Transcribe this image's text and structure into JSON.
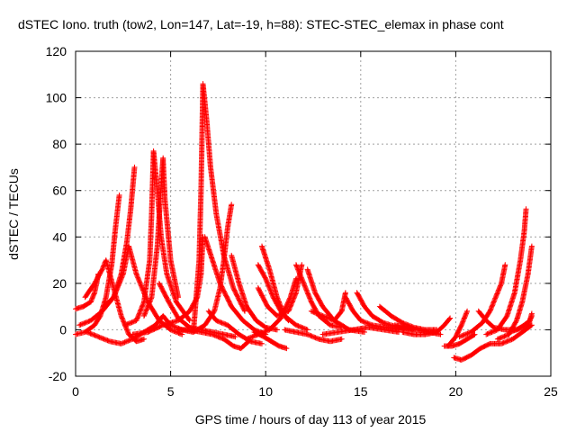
{
  "chart_data": {
    "type": "scatter",
    "title": "dSTEC Iono. truth (tow2, Lon=147, Lat=-19, h=88): STEC-STEC_elemax in phase cont",
    "xlabel": "GPS time / hours of day 113 of year 2015",
    "ylabel": "dSTEC  / TECUs",
    "xlim": [
      0,
      25
    ],
    "ylim": [
      -20,
      120
    ],
    "xticks": [
      "0",
      "5",
      "10",
      "15",
      "20",
      "25"
    ],
    "yticks": [
      "-20",
      "0",
      "20",
      "40",
      "60",
      "80",
      "100",
      "120"
    ],
    "grid": true,
    "marker": "+",
    "color": "#ff0000",
    "series": [
      {
        "points": [
          [
            0.0,
            -2
          ],
          [
            0.5,
            -1
          ],
          [
            1.0,
            2
          ],
          [
            1.3,
            6
          ],
          [
            1.6,
            14
          ],
          [
            1.9,
            28
          ],
          [
            2.1,
            44
          ],
          [
            2.3,
            58
          ]
        ]
      },
      {
        "points": [
          [
            0.0,
            9
          ],
          [
            0.4,
            10
          ],
          [
            0.8,
            12
          ],
          [
            1.0,
            16
          ],
          [
            1.2,
            24
          ]
        ]
      },
      {
        "points": [
          [
            0.5,
            14
          ],
          [
            1.0,
            20
          ],
          [
            1.4,
            26
          ],
          [
            1.6,
            30
          ],
          [
            2.0,
            18
          ],
          [
            2.4,
            6
          ],
          [
            2.8,
            -2
          ],
          [
            3.2,
            -5
          ],
          [
            3.6,
            -4
          ]
        ]
      },
      {
        "points": [
          [
            0.2,
            2
          ],
          [
            0.8,
            4
          ],
          [
            1.4,
            8
          ],
          [
            2.0,
            14
          ],
          [
            2.4,
            24
          ],
          [
            2.7,
            38
          ],
          [
            2.9,
            52
          ],
          [
            3.1,
            70
          ]
        ]
      },
      {
        "points": [
          [
            0.6,
            -1
          ],
          [
            1.2,
            -3
          ],
          [
            1.8,
            -5
          ],
          [
            2.4,
            -6
          ],
          [
            3.0,
            -4
          ],
          [
            3.6,
            -1
          ],
          [
            4.2,
            2
          ],
          [
            4.6,
            6
          ],
          [
            5.0,
            2
          ]
        ]
      },
      {
        "points": [
          [
            1.5,
            10
          ],
          [
            2.0,
            14
          ],
          [
            2.5,
            24
          ],
          [
            2.8,
            36
          ],
          [
            3.2,
            24
          ],
          [
            3.8,
            12
          ],
          [
            4.4,
            4
          ],
          [
            5.0,
            0
          ],
          [
            5.6,
            -2
          ]
        ]
      },
      {
        "points": [
          [
            2.6,
            2
          ],
          [
            3.2,
            4
          ],
          [
            3.6,
            12
          ],
          [
            3.9,
            30
          ],
          [
            4.0,
            50
          ],
          [
            4.1,
            77
          ],
          [
            4.3,
            60
          ],
          [
            4.5,
            40
          ],
          [
            4.8,
            24
          ],
          [
            5.3,
            12
          ],
          [
            6.0,
            4
          ]
        ]
      },
      {
        "points": [
          [
            3.6,
            6
          ],
          [
            4.0,
            14
          ],
          [
            4.3,
            36
          ],
          [
            4.5,
            62
          ],
          [
            4.6,
            74
          ],
          [
            4.7,
            56
          ],
          [
            5.0,
            30
          ],
          [
            5.4,
            14
          ]
        ]
      },
      {
        "points": [
          [
            3.0,
            -2
          ],
          [
            3.8,
            -1
          ],
          [
            4.6,
            2
          ],
          [
            5.4,
            4
          ],
          [
            6.0,
            8
          ],
          [
            6.4,
            14
          ],
          [
            6.6,
            24
          ],
          [
            6.7,
            40
          ]
        ]
      },
      {
        "points": [
          [
            4.4,
            20
          ],
          [
            4.9,
            12
          ],
          [
            5.4,
            5
          ],
          [
            6.0,
            1
          ],
          [
            6.6,
            0
          ],
          [
            7.2,
            -1
          ],
          [
            7.8,
            -2
          ],
          [
            8.4,
            -3
          ]
        ]
      },
      {
        "points": [
          [
            5.0,
            2
          ],
          [
            5.6,
            0
          ],
          [
            6.2,
            -1
          ],
          [
            6.5,
            30
          ],
          [
            6.6,
            60
          ],
          [
            6.7,
            106
          ],
          [
            6.9,
            90
          ],
          [
            7.1,
            70
          ],
          [
            7.4,
            50
          ],
          [
            7.8,
            32
          ],
          [
            8.3,
            18
          ],
          [
            8.9,
            8
          ]
        ]
      },
      {
        "points": [
          [
            5.4,
            0
          ],
          [
            6.0,
            0
          ],
          [
            6.6,
            -1
          ],
          [
            7.2,
            -2
          ],
          [
            7.8,
            -4
          ],
          [
            8.3,
            -7
          ],
          [
            8.7,
            -8
          ],
          [
            9.1,
            -5
          ]
        ]
      },
      {
        "points": [
          [
            6.2,
            -1
          ],
          [
            6.8,
            2
          ],
          [
            7.3,
            8
          ],
          [
            7.6,
            18
          ],
          [
            7.8,
            30
          ],
          [
            8.0,
            44
          ],
          [
            8.2,
            54
          ]
        ]
      },
      {
        "points": [
          [
            6.8,
            40
          ],
          [
            7.2,
            30
          ],
          [
            7.6,
            20
          ],
          [
            8.2,
            10
          ],
          [
            8.8,
            4
          ],
          [
            9.4,
            0
          ],
          [
            10.0,
            -2
          ]
        ]
      },
      {
        "points": [
          [
            7.0,
            8
          ],
          [
            7.4,
            4
          ],
          [
            8.0,
            2
          ],
          [
            8.6,
            -2
          ],
          [
            9.2,
            -5
          ],
          [
            9.8,
            -6
          ]
        ]
      },
      {
        "points": [
          [
            8.2,
            32
          ],
          [
            8.6,
            20
          ],
          [
            9.0,
            10
          ],
          [
            9.5,
            4
          ],
          [
            10.0,
            1
          ],
          [
            10.6,
            0
          ]
        ]
      },
      {
        "points": [
          [
            9.6,
            28
          ],
          [
            10.0,
            22
          ],
          [
            10.4,
            14
          ],
          [
            10.8,
            8
          ],
          [
            11.2,
            4
          ]
        ]
      },
      {
        "points": [
          [
            9.4,
            -1
          ],
          [
            9.9,
            -3
          ],
          [
            10.3,
            -5
          ],
          [
            10.7,
            -7
          ],
          [
            11.1,
            -8
          ]
        ]
      },
      {
        "points": [
          [
            9.8,
            36
          ],
          [
            10.2,
            26
          ],
          [
            10.6,
            14
          ],
          [
            11.0,
            6
          ],
          [
            11.6,
            2
          ],
          [
            12.2,
            0
          ]
        ]
      },
      {
        "points": [
          [
            9.6,
            18
          ],
          [
            10.1,
            10
          ],
          [
            10.6,
            6
          ],
          [
            11.2,
            8
          ],
          [
            11.6,
            16
          ],
          [
            11.9,
            28
          ]
        ]
      },
      {
        "points": [
          [
            9.0,
            -4
          ],
          [
            9.6,
            -2
          ],
          [
            10.2,
            0
          ],
          [
            10.8,
            5
          ],
          [
            11.3,
            14
          ],
          [
            11.6,
            22
          ]
        ]
      },
      {
        "points": [
          [
            11.0,
            0
          ],
          [
            11.6,
            -1
          ],
          [
            12.2,
            -2
          ],
          [
            12.8,
            -4
          ],
          [
            13.4,
            -5
          ],
          [
            14.0,
            -4
          ]
        ]
      },
      {
        "points": [
          [
            11.6,
            28
          ],
          [
            12.0,
            20
          ],
          [
            12.4,
            12
          ],
          [
            12.8,
            6
          ],
          [
            13.4,
            2
          ],
          [
            14.0,
            1
          ]
        ]
      },
      {
        "points": [
          [
            12.2,
            26
          ],
          [
            12.6,
            16
          ],
          [
            13.0,
            10
          ],
          [
            13.6,
            4
          ],
          [
            14.4,
            0
          ],
          [
            15.2,
            -1
          ]
        ]
      },
      {
        "points": [
          [
            12.4,
            8
          ],
          [
            13.0,
            6
          ],
          [
            13.6,
            4
          ],
          [
            14.0,
            8
          ],
          [
            14.2,
            16
          ]
        ]
      },
      {
        "points": [
          [
            13.0,
            -2
          ],
          [
            13.8,
            -1
          ],
          [
            14.6,
            0
          ],
          [
            15.4,
            1
          ],
          [
            16.2,
            0
          ],
          [
            17.0,
            -1
          ]
        ]
      },
      {
        "points": [
          [
            14.2,
            14
          ],
          [
            14.6,
            8
          ],
          [
            15.0,
            4
          ],
          [
            15.6,
            2
          ],
          [
            16.4,
            1
          ],
          [
            17.2,
            0
          ]
        ]
      },
      {
        "points": [
          [
            14.8,
            16
          ],
          [
            15.2,
            10
          ],
          [
            15.6,
            6
          ],
          [
            16.2,
            3
          ],
          [
            17.0,
            1
          ],
          [
            17.8,
            0
          ]
        ]
      },
      {
        "points": [
          [
            16.0,
            10
          ],
          [
            16.6,
            6
          ],
          [
            17.2,
            3
          ],
          [
            17.8,
            1
          ],
          [
            18.4,
            0
          ],
          [
            19.0,
            0
          ]
        ]
      },
      {
        "points": [
          [
            16.8,
            2
          ],
          [
            17.4,
            1
          ],
          [
            18.0,
            0
          ],
          [
            18.6,
            -1
          ],
          [
            19.2,
            -2
          ]
        ]
      },
      {
        "points": [
          [
            17.2,
            -1
          ],
          [
            17.8,
            -2
          ],
          [
            18.4,
            -2
          ],
          [
            19.0,
            -1
          ],
          [
            19.4,
            2
          ],
          [
            19.7,
            5
          ]
        ]
      },
      {
        "points": [
          [
            19.4,
            -7
          ],
          [
            19.8,
            -7
          ],
          [
            20.2,
            -6
          ],
          [
            20.6,
            -4
          ],
          [
            21.0,
            -2
          ]
        ]
      },
      {
        "points": [
          [
            19.6,
            -7
          ],
          [
            20.0,
            -3
          ],
          [
            20.3,
            2
          ],
          [
            20.6,
            8
          ]
        ]
      },
      {
        "points": [
          [
            19.9,
            -12
          ],
          [
            20.3,
            -13
          ],
          [
            20.8,
            -11
          ],
          [
            21.3,
            -8
          ],
          [
            21.8,
            -6
          ],
          [
            22.4,
            -6
          ],
          [
            23.0,
            -4
          ],
          [
            23.5,
            -1
          ],
          [
            24.0,
            2
          ]
        ]
      },
      {
        "points": [
          [
            20.2,
            -3
          ],
          [
            20.8,
            -1
          ],
          [
            21.4,
            3
          ],
          [
            21.8,
            8
          ],
          [
            22.1,
            14
          ],
          [
            22.4,
            20
          ],
          [
            22.6,
            28
          ]
        ]
      },
      {
        "points": [
          [
            21.2,
            8
          ],
          [
            21.6,
            4
          ],
          [
            22.0,
            1
          ],
          [
            22.6,
            0
          ],
          [
            23.2,
            0
          ],
          [
            23.8,
            2
          ],
          [
            24.0,
            6
          ]
        ]
      },
      {
        "points": [
          [
            22.8,
            -1
          ],
          [
            23.2,
            0
          ],
          [
            23.6,
            2
          ],
          [
            23.9,
            4
          ],
          [
            24.0,
            7
          ]
        ]
      },
      {
        "points": [
          [
            21.6,
            -2
          ],
          [
            22.2,
            0
          ],
          [
            22.7,
            6
          ],
          [
            23.1,
            16
          ],
          [
            23.4,
            30
          ],
          [
            23.6,
            42
          ],
          [
            23.7,
            52
          ]
        ]
      },
      {
        "points": [
          [
            22.2,
            -4
          ],
          [
            22.8,
            -2
          ],
          [
            23.2,
            4
          ],
          [
            23.5,
            12
          ],
          [
            23.8,
            24
          ],
          [
            24.0,
            36
          ]
        ]
      }
    ]
  }
}
